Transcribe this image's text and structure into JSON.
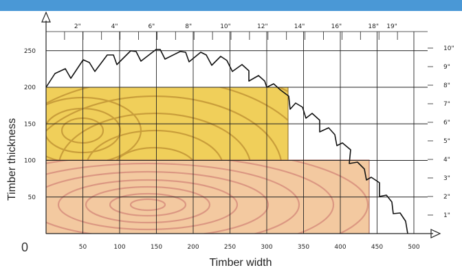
{
  "colors": {
    "top_bar": "#4a98d6",
    "upper_plank": "#f0cf5a",
    "upper_grain": "#b98a2e",
    "lower_plank": "#f3c9a0",
    "lower_grain": "#c9706a",
    "grid": "#222222",
    "blade": "#111111"
  },
  "axes": {
    "x_title": "Timber width",
    "y_title": "Timber thickness",
    "origin_label": "0",
    "x_ticks": [
      "50",
      "100",
      "150",
      "200",
      "250",
      "300",
      "350",
      "400",
      "450",
      "500"
    ],
    "y_ticks": [
      "50",
      "100",
      "150",
      "200",
      "250"
    ],
    "top_inch_ticks": [
      "2\"",
      "4\"",
      "6\"",
      "8\"",
      "10\"",
      "12\"",
      "14\"",
      "16\"",
      "18\"",
      "19\""
    ],
    "right_inch_ticks": [
      "1\"",
      "2\"",
      "3\"",
      "4\"",
      "5\"",
      "6\"",
      "7\"",
      "8\"",
      "9\"",
      "10\""
    ]
  },
  "chart_data": {
    "type": "diagram",
    "x_range": [
      0,
      500
    ],
    "y_range": [
      0,
      260
    ],
    "planks": [
      {
        "width": 330,
        "thickness_from": 100,
        "thickness_to": 200
      },
      {
        "width": 440,
        "thickness_from": 0,
        "thickness_to": 100
      }
    ]
  }
}
